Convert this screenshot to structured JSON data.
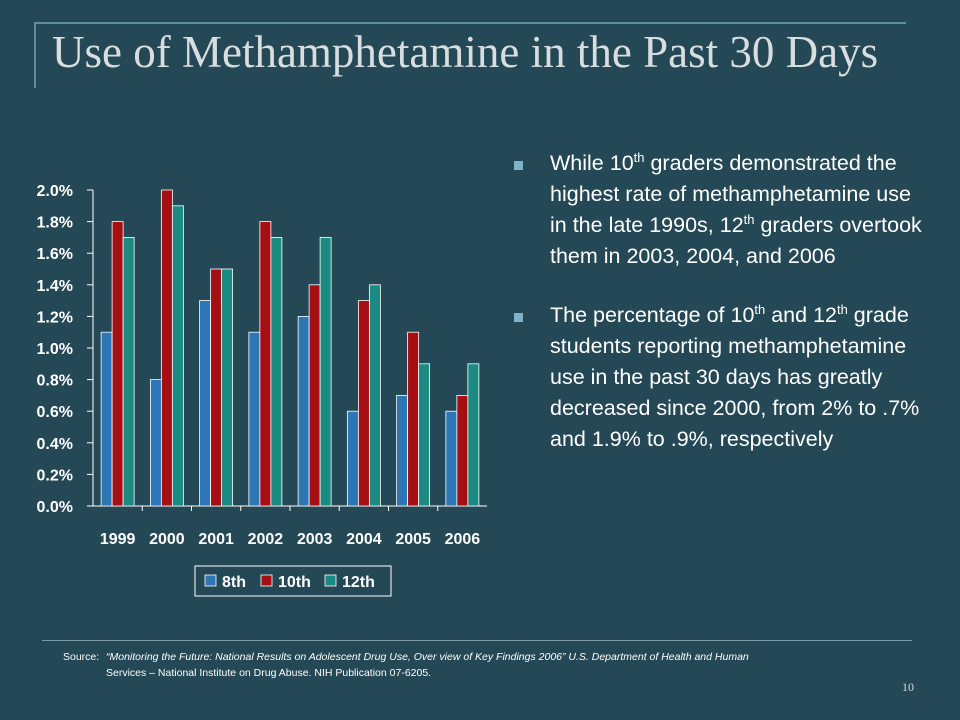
{
  "slide": {
    "title": "Use of Methamphetamine in the Past 30 Days",
    "page_number": "10"
  },
  "bullets": [
    {
      "parts": [
        "While 10",
        "th",
        " graders demonstrated the highest rate of methamphetamine use in the late 1990s, 12",
        "th",
        " graders overtook them in 2003, 2004, and 2006"
      ]
    },
    {
      "parts": [
        "The percentage of 10",
        "th",
        " and 12",
        "th",
        " grade students reporting methamphetamine use in the past 30 days has greatly decreased since 2000, from 2% to .7% and 1.9% to .9%, respectively"
      ]
    }
  ],
  "source": {
    "label": "Source:",
    "line1": "“Monitoring the Future: National Results on Adolescent Drug Use, Over view of Key Findings 2006”  U.S. Department of Health and Human",
    "line2": "Services – National Institute on Drug Abuse. NIH Publication 07-6205."
  },
  "chart_data": {
    "type": "bar",
    "categories": [
      "1999",
      "2000",
      "2001",
      "2002",
      "2003",
      "2004",
      "2005",
      "2006"
    ],
    "series": [
      {
        "name": "8th",
        "color": "#2e75b6",
        "values": [
          1.1,
          0.8,
          1.3,
          1.1,
          1.2,
          0.6,
          0.7,
          0.6
        ]
      },
      {
        "name": "10th",
        "color": "#a50f14",
        "values": [
          1.8,
          2.0,
          1.5,
          1.8,
          1.4,
          1.3,
          1.1,
          0.7
        ]
      },
      {
        "name": "12th",
        "color": "#1b8a83",
        "values": [
          1.7,
          1.9,
          1.5,
          1.7,
          1.7,
          1.4,
          0.9,
          0.9
        ]
      }
    ],
    "yticks": [
      "0.0%",
      "0.2%",
      "0.4%",
      "0.6%",
      "0.8%",
      "1.0%",
      "1.2%",
      "1.4%",
      "1.6%",
      "1.8%",
      "2.0%"
    ],
    "ylim": [
      0,
      2.0
    ],
    "grid": false,
    "legend": "bottom"
  }
}
